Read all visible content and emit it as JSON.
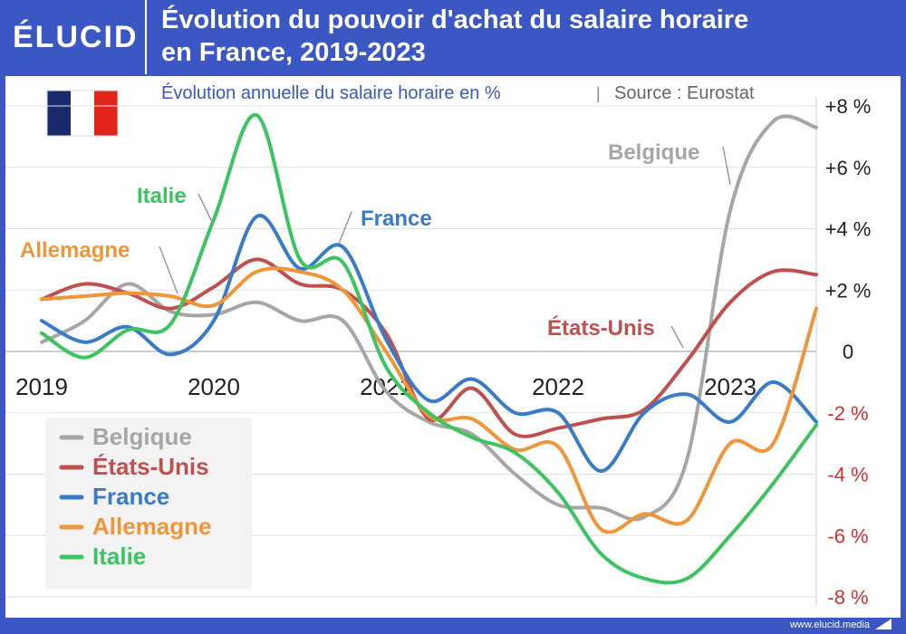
{
  "header": {
    "logo": "ÉLUCID",
    "title_line1": "Évolution du pouvoir d'achat du salaire horaire",
    "title_line2": "en France, 2019-2023"
  },
  "subtitle": {
    "main": "Évolution annuelle du salaire horaire en %",
    "separator": "|",
    "source": "Source : Eurostat"
  },
  "footer": {
    "url": "www.elucid.media"
  },
  "flag": {
    "colors": [
      "#1a2a6c",
      "#ffffff",
      "#e1251b"
    ]
  },
  "colors": {
    "Belgique": "#a6a6a6",
    "États-Unis": "#c0504d",
    "France": "#3a7bc8",
    "Allemagne": "#f0963a",
    "Italie": "#3cc460",
    "negative_tick": "#d32f2f",
    "positive_tick": "#222222"
  },
  "chart_data": {
    "type": "line",
    "title": "Évolution du pouvoir d'achat du salaire horaire en France, 2019-2023",
    "subtitle": "Évolution annuelle du salaire horaire en %",
    "source": "Source : Eurostat",
    "xlim": [
      2019,
      2023.5
    ],
    "ylim": [
      -8,
      8
    ],
    "x_ticks": [
      2019,
      2020,
      2021,
      2022,
      2023
    ],
    "x_tick_labels": [
      "2019",
      "2020",
      "2021",
      "2022",
      "2023"
    ],
    "y_ticks": [
      8,
      6,
      4,
      2,
      0,
      -2,
      -4,
      -6,
      -8
    ],
    "y_tick_labels": [
      "+8 %",
      "+6 %",
      "+4 %",
      "+2 %",
      "0",
      "-2 %",
      "-4 %",
      "-6 %",
      "-8 %"
    ],
    "legend_position": "bottom-left",
    "grid": "horizontal",
    "series": [
      {
        "name": "Belgique",
        "x": [
          2019,
          2019.25,
          2019.5,
          2019.75,
          2020,
          2020.25,
          2020.5,
          2020.75,
          2021,
          2021.25,
          2021.5,
          2021.75,
          2022,
          2022.25,
          2022.5,
          2022.75,
          2023,
          2023.25,
          2023.5
        ],
        "y": [
          0.3,
          1.0,
          2.2,
          1.3,
          1.2,
          1.6,
          1.0,
          1.0,
          -1.3,
          -2.3,
          -2.7,
          -4.0,
          -5.0,
          -5.1,
          -5.4,
          -3.5,
          4.6,
          7.5,
          7.3
        ]
      },
      {
        "name": "États-Unis",
        "x": [
          2019,
          2019.25,
          2019.5,
          2019.75,
          2020,
          2020.25,
          2020.5,
          2020.75,
          2021,
          2021.25,
          2021.5,
          2021.75,
          2022,
          2022.25,
          2022.5,
          2022.75,
          2023,
          2023.25,
          2023.5
        ],
        "y": [
          1.7,
          2.2,
          1.9,
          1.4,
          2.1,
          3.0,
          2.2,
          2.0,
          0.6,
          -2.2,
          -1.2,
          -2.7,
          -2.5,
          -2.2,
          -1.9,
          -0.3,
          1.6,
          2.6,
          2.5
        ]
      },
      {
        "name": "France",
        "x": [
          2019,
          2019.25,
          2019.5,
          2019.75,
          2020,
          2020.25,
          2020.5,
          2020.75,
          2021,
          2021.25,
          2021.5,
          2021.75,
          2022,
          2022.25,
          2022.5,
          2022.75,
          2023,
          2023.25,
          2023.5
        ],
        "y": [
          1.0,
          0.3,
          0.8,
          -0.1,
          1.0,
          4.4,
          2.7,
          3.4,
          0.4,
          -1.6,
          -0.9,
          -2.0,
          -2.0,
          -3.9,
          -2.0,
          -1.4,
          -2.3,
          -1.0,
          -2.3
        ]
      },
      {
        "name": "Allemagne",
        "x": [
          2019,
          2019.25,
          2019.5,
          2019.75,
          2020,
          2020.25,
          2020.5,
          2020.75,
          2021,
          2021.25,
          2021.5,
          2021.75,
          2022,
          2022.25,
          2022.5,
          2022.75,
          2023,
          2023.25,
          2023.5
        ],
        "y": [
          1.7,
          1.8,
          1.9,
          1.8,
          1.5,
          2.6,
          2.6,
          2.0,
          0.0,
          -2.1,
          -2.2,
          -3.2,
          -3.1,
          -5.8,
          -5.3,
          -5.5,
          -3.0,
          -3.0,
          1.4
        ]
      },
      {
        "name": "Italie",
        "x": [
          2019,
          2019.25,
          2019.5,
          2019.75,
          2020,
          2020.25,
          2020.5,
          2020.75,
          2021,
          2021.25,
          2021.5,
          2021.75,
          2022,
          2022.25,
          2022.5,
          2022.75,
          2023,
          2023.25,
          2023.5
        ],
        "y": [
          0.6,
          -0.2,
          0.7,
          0.9,
          4.3,
          7.7,
          3.0,
          2.9,
          -0.5,
          -2.0,
          -2.8,
          -3.3,
          -4.6,
          -6.6,
          -7.4,
          -7.4,
          -6.0,
          -4.3,
          -2.4
        ]
      }
    ],
    "annotations": [
      {
        "series": "Italie",
        "text": "Italie"
      },
      {
        "series": "France",
        "text": "France"
      },
      {
        "series": "Allemagne",
        "text": "Allemagne"
      },
      {
        "series": "Belgique",
        "text": "Belgique"
      },
      {
        "series": "États-Unis",
        "text": "États-Unis"
      }
    ],
    "legend": [
      "Belgique",
      "États-Unis",
      "France",
      "Allemagne",
      "Italie"
    ]
  }
}
